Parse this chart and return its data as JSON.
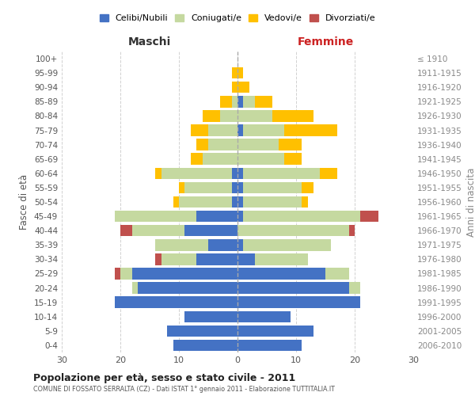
{
  "age_groups": [
    "0-4",
    "5-9",
    "10-14",
    "15-19",
    "20-24",
    "25-29",
    "30-34",
    "35-39",
    "40-44",
    "45-49",
    "50-54",
    "55-59",
    "60-64",
    "65-69",
    "70-74",
    "75-79",
    "80-84",
    "85-89",
    "90-94",
    "95-99",
    "100+"
  ],
  "birth_years": [
    "2006-2010",
    "2001-2005",
    "1996-2000",
    "1991-1995",
    "1986-1990",
    "1981-1985",
    "1976-1980",
    "1971-1975",
    "1966-1970",
    "1961-1965",
    "1956-1960",
    "1951-1955",
    "1946-1950",
    "1941-1945",
    "1936-1940",
    "1931-1935",
    "1926-1930",
    "1921-1925",
    "1916-1920",
    "1911-1915",
    "≤ 1910"
  ],
  "maschi": {
    "celibi": [
      11,
      12,
      9,
      21,
      17,
      18,
      7,
      5,
      9,
      7,
      1,
      1,
      1,
      0,
      0,
      0,
      0,
      0,
      0,
      0,
      0
    ],
    "coniugati": [
      0,
      0,
      0,
      0,
      1,
      2,
      6,
      9,
      9,
      14,
      9,
      8,
      12,
      6,
      5,
      5,
      3,
      1,
      0,
      0,
      0
    ],
    "vedovi": [
      0,
      0,
      0,
      0,
      0,
      0,
      0,
      0,
      0,
      0,
      1,
      1,
      1,
      2,
      2,
      3,
      3,
      2,
      1,
      1,
      0
    ],
    "divorziati": [
      0,
      0,
      0,
      0,
      0,
      1,
      1,
      0,
      2,
      0,
      0,
      0,
      0,
      0,
      0,
      0,
      0,
      0,
      0,
      0,
      0
    ]
  },
  "femmine": {
    "nubili": [
      11,
      13,
      9,
      21,
      19,
      15,
      3,
      1,
      0,
      1,
      1,
      1,
      1,
      0,
      0,
      1,
      0,
      1,
      0,
      0,
      0
    ],
    "coniugate": [
      0,
      0,
      0,
      0,
      2,
      4,
      9,
      15,
      19,
      20,
      10,
      10,
      13,
      8,
      7,
      7,
      6,
      2,
      0,
      0,
      0
    ],
    "vedove": [
      0,
      0,
      0,
      0,
      0,
      0,
      0,
      0,
      0,
      0,
      1,
      2,
      3,
      3,
      4,
      9,
      7,
      3,
      2,
      1,
      0
    ],
    "divorziate": [
      0,
      0,
      0,
      0,
      0,
      0,
      0,
      0,
      1,
      3,
      0,
      0,
      0,
      0,
      0,
      0,
      0,
      0,
      0,
      0,
      0
    ]
  },
  "colors": {
    "celibi": "#4472c4",
    "coniugati": "#c5d9a0",
    "vedovi": "#ffc000",
    "divorziati": "#c0504d"
  },
  "title": "Popolazione per età, sesso e stato civile - 2011",
  "subtitle": "COMUNE DI FOSSATO SERRALTA (CZ) - Dati ISTAT 1° gennaio 2011 - Elaborazione TUTTITALIA.IT",
  "xlabel_left": "Maschi",
  "xlabel_right": "Femmine",
  "ylabel_left": "Fasce di età",
  "ylabel_right": "Anni di nascita",
  "xlim": 30,
  "bg_color": "#ffffff",
  "grid_color": "#cccccc",
  "legend_labels": [
    "Celibi/Nubili",
    "Coniugati/e",
    "Vedovi/e",
    "Divorziati/e"
  ]
}
